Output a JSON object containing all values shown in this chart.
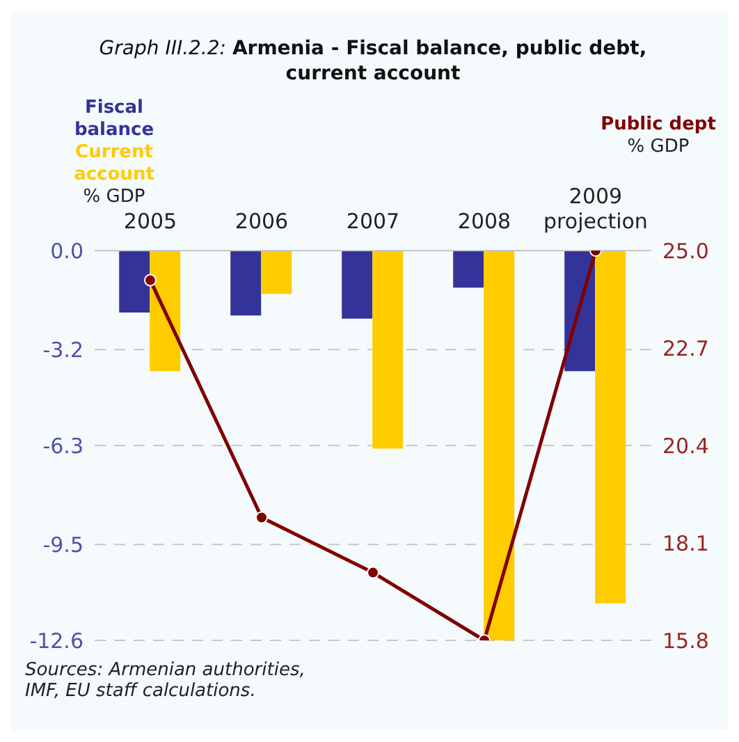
{
  "chart_data": {
    "type": "bar",
    "title": "Graph III.2.2: Armenia - Fiscal balance, public debt, current account",
    "categories": [
      "2005",
      "2006",
      "2007",
      "2008",
      "2009 projection"
    ],
    "series": [
      {
        "name": "Fiscal balance",
        "color": "#333399",
        "values": [
          -2.0,
          -2.1,
          -2.2,
          -1.2,
          -3.9
        ]
      },
      {
        "name": "Current account",
        "color": "#ffcc00",
        "values": [
          -3.9,
          -1.4,
          -6.4,
          -12.6,
          -11.4
        ]
      },
      {
        "name": "Public dept",
        "type": "line",
        "axis": "y2",
        "color": "#800000",
        "values": [
          24.3,
          18.7,
          17.4,
          15.8,
          25.0
        ]
      }
    ],
    "ylabel": "% GDP",
    "y2label": "% GDP",
    "ylim": [
      -12.6,
      0
    ],
    "yticks": [
      {
        "value": -12.6,
        "label": "-12.6"
      },
      {
        "value": -9.5,
        "label": "-9.5"
      },
      {
        "value": -6.3,
        "label": "-6.3"
      },
      {
        "value": -3.2,
        "label": "-3.2"
      },
      {
        "value": 0,
        "label": "0.0"
      }
    ],
    "y2lim": [
      15.8,
      25
    ],
    "y2ticks": [
      {
        "value": 15.8,
        "label": "15.8"
      },
      {
        "value": 18.1,
        "label": "18.1"
      },
      {
        "value": 20.4,
        "label": "20.4"
      },
      {
        "value": 22.7,
        "label": "22.7"
      },
      {
        "value": 25,
        "label": "25.0"
      }
    ],
    "grid": "y",
    "legend": "top",
    "marker": "circle",
    "line_style": "solid",
    "annotations": [
      "Sources: Armenian authorities, IMF, EU staff calculations."
    ]
  }
}
